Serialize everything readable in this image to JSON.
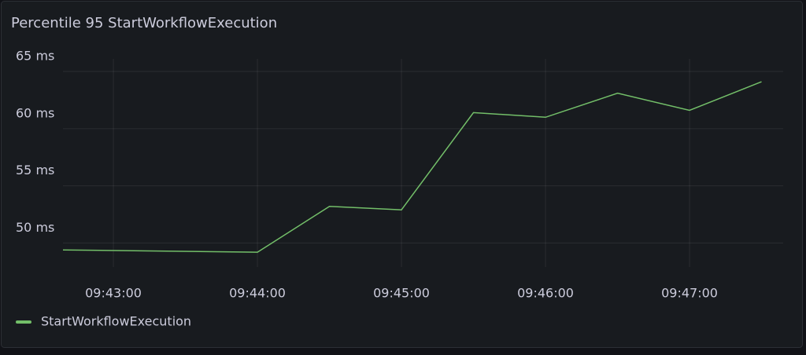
{
  "chart_data": {
    "type": "line",
    "title": "Percentile 95 StartWorkflowExecution",
    "x": [
      "09:42:39",
      "09:44:00",
      "09:44:30",
      "09:45:00",
      "09:45:30",
      "09:46:00",
      "09:46:30",
      "09:47:00",
      "09:47:30"
    ],
    "series": [
      {
        "name": "StartWorkflowExecution",
        "color": "#73bf69",
        "values": [
          49.4,
          49.2,
          53.2,
          52.9,
          61.4,
          61.0,
          63.1,
          61.6,
          64.1
        ]
      }
    ],
    "xlim": [
      "09:42:39",
      "09:47:39"
    ],
    "xticks": [
      "09:43:00",
      "09:44:00",
      "09:45:00",
      "09:46:00",
      "09:47:00"
    ],
    "ylim": [
      47.9,
      66.1
    ],
    "yticks": [
      {
        "value": 50,
        "label": "50 ms"
      },
      {
        "value": 55,
        "label": "55 ms"
      },
      {
        "value": 60,
        "label": "60 ms"
      },
      {
        "value": 65,
        "label": "65 ms"
      }
    ],
    "grid": true
  }
}
